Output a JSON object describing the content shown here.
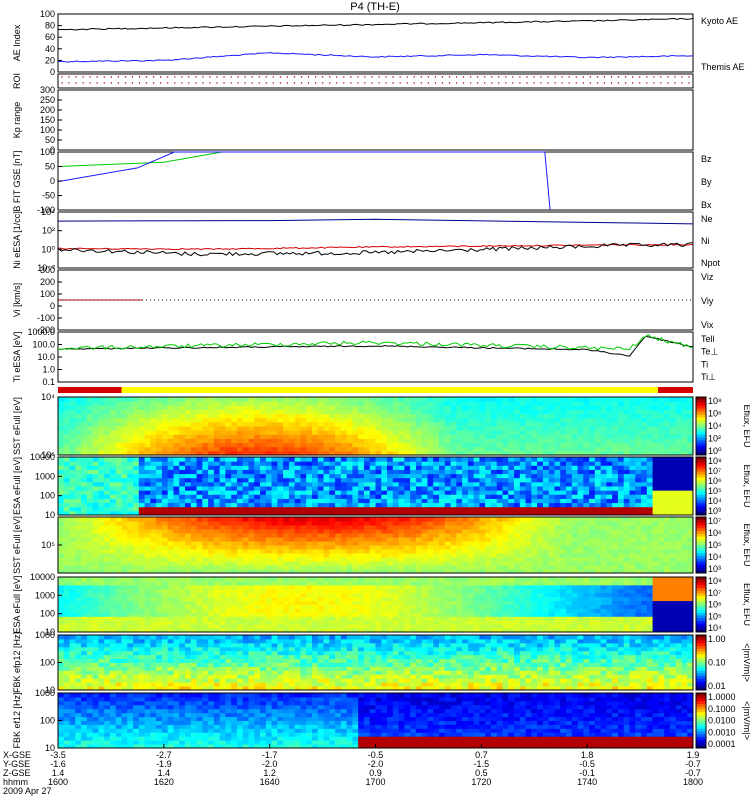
{
  "title": "P4 (TH-E)",
  "date_label": "2009 Apr 27",
  "colors": {
    "black": "#000000",
    "blue": "#1a1aff",
    "red": "#d40000",
    "green": "#00cc00",
    "navy": "#00008b"
  },
  "time_axis": {
    "ticks": [
      "1600",
      "1620",
      "1640",
      "1700",
      "1720",
      "1740",
      "1800"
    ],
    "rows": [
      {
        "label": "X-GSE",
        "values": [
          "-3.5",
          "-2.7",
          "-1.7",
          "-0.5",
          "0.7",
          "1.8",
          "1.9"
        ]
      },
      {
        "label": "Y-GSE",
        "values": [
          "-1.6",
          "-1.9",
          "-2.0",
          "-2.0",
          "-1.5",
          "-0.5",
          "-0.7"
        ]
      },
      {
        "label": "Z-GSE",
        "values": [
          "1.4",
          "1.4",
          "1.2",
          "0.9",
          "0.5",
          "-0.1",
          "-0.7"
        ]
      },
      {
        "label": "hhmm",
        "values": [
          "1600",
          "1620",
          "1640",
          "1700",
          "1720",
          "1740",
          "1800"
        ]
      }
    ]
  },
  "chart_data": [
    {
      "type": "line",
      "ylabel": "AE Index",
      "ylim": [
        0,
        100
      ],
      "yticks": [
        "0",
        "20",
        "40",
        "60",
        "80",
        "100"
      ],
      "x": [
        "1600",
        "1620",
        "1640",
        "1700",
        "1720",
        "1740",
        "1800"
      ],
      "series": [
        {
          "name": "Kyoto AE",
          "color": "#1a1aff",
          "values": [
            18,
            20,
            33,
            26,
            30,
            25,
            28
          ]
        },
        {
          "name": "Themis AE",
          "color": "#000000",
          "values": [
            73,
            76,
            79,
            82,
            85,
            88,
            92
          ]
        }
      ]
    },
    {
      "type": "scatter",
      "ylabel": "ROI",
      "ylim": [
        0,
        1
      ],
      "yticks": []
    },
    {
      "type": "line",
      "ylabel": "Kp range",
      "ylim": [
        0,
        300
      ],
      "yticks": [
        "0",
        "50",
        "100",
        "150",
        "200",
        "250",
        "300"
      ],
      "series": []
    },
    {
      "type": "line",
      "ylabel": "B FIT GSE [nT]",
      "ylim": [
        -100,
        100
      ],
      "yticks": [
        "-100",
        "-50",
        "0",
        "50",
        "100"
      ],
      "series": [
        {
          "name": "Bz",
          "color": "#d40000",
          "values": []
        },
        {
          "name": "By",
          "color": "#00cc00",
          "values": [
            {
              "x": "1600",
              "y": 50
            },
            {
              "x": "1620",
              "y": 65
            },
            {
              "x": "1631",
              "y": 100
            }
          ]
        },
        {
          "name": "Bx",
          "color": "#1a1aff",
          "values": [
            {
              "x": "1600",
              "y": -2
            },
            {
              "x": "1615",
              "y": 45
            },
            {
              "x": "1622",
              "y": 100
            },
            {
              "x": "1732",
              "y": 100
            },
            {
              "x": "1733",
              "y": -100
            }
          ]
        }
      ]
    },
    {
      "type": "line",
      "ylabel": "Ni eESA [1/cc]",
      "log": true,
      "yticks": [
        "10⁻²",
        "10⁰",
        "10²",
        "10⁴"
      ],
      "series": [
        {
          "name": "Ne",
          "color": "#d40000",
          "values": [
            {
              "x": "1600",
              "y": 0.6
            },
            {
              "x": "1630",
              "y": 0.5
            },
            {
              "x": "1700",
              "y": 1.0
            },
            {
              "x": "1745",
              "y": 2.0
            },
            {
              "x": "1800",
              "y": 2.2
            }
          ]
        },
        {
          "name": "Ni",
          "color": "#000000",
          "values": [
            {
              "x": "1600",
              "y": 0.5
            },
            {
              "x": "1625",
              "y": 0.1
            },
            {
              "x": "1700",
              "y": 0.15
            },
            {
              "x": "1745",
              "y": 1.6
            },
            {
              "x": "1800",
              "y": 2.2
            }
          ]
        },
        {
          "name": "Npot",
          "color": "#00008b",
          "values": [
            {
              "x": "1600",
              "y": 5000
            },
            {
              "x": "1640",
              "y": 6000
            },
            {
              "x": "1700",
              "y": 9000
            },
            {
              "x": "1745",
              "y": 3000
            },
            {
              "x": "1800",
              "y": 2000
            }
          ]
        }
      ]
    },
    {
      "type": "line",
      "ylabel": "Vi [km/s]",
      "ylim": [
        -300,
        300
      ],
      "yticks": [
        "-200",
        "-100",
        "0",
        "100",
        "200",
        "300"
      ],
      "series": [
        {
          "name": "Viz",
          "color": "#d40000",
          "values": [
            {
              "x": "1600",
              "y": 0
            },
            {
              "x": "1616",
              "y": 0
            }
          ]
        },
        {
          "name": "Viy",
          "color": "#00cc00",
          "values": []
        },
        {
          "name": "Vix",
          "color": "#1a1aff",
          "values": []
        }
      ]
    },
    {
      "type": "line",
      "ylabel": "Ti eESA [eV]",
      "log": true,
      "yticks": [
        "0.1",
        "1.0",
        "10.0",
        "100.0",
        "1000.0"
      ],
      "series": [
        {
          "name": "Tell",
          "color": "#000000",
          "values": [
            {
              "x": "1600",
              "y": 80
            },
            {
              "x": "1700",
              "y": 150
            },
            {
              "x": "1740",
              "y": 70
            },
            {
              "x": "1748",
              "y": 20
            },
            {
              "x": "1751",
              "y": 1100
            },
            {
              "x": "1800",
              "y": 120
            }
          ]
        },
        {
          "name": "Te⊥",
          "color": "#d40000",
          "values": []
        },
        {
          "name": "Ti",
          "color": "#00cc00",
          "values": [
            {
              "x": "1600",
              "y": 90
            },
            {
              "x": "1700",
              "y": 300
            },
            {
              "x": "1740",
              "y": 100
            },
            {
              "x": "1748",
              "y": 80
            },
            {
              "x": "1751",
              "y": 1100
            },
            {
              "x": "1800",
              "y": 120
            }
          ]
        },
        {
          "name": "Ti⊥",
          "color": "#1a1aff",
          "values": []
        }
      ]
    },
    {
      "type": "heatmap",
      "ylabel": "SST eFull [eV]",
      "yticks": [
        "10⁵",
        "10⁴"
      ],
      "cbar_ticks": [
        "10⁸",
        "10⁶",
        "10⁴",
        "10²",
        "10⁰"
      ],
      "cbar_label": "Eflux, EFU"
    },
    {
      "type": "heatmap",
      "ylabel": "ESA eFull [eV]",
      "yticks": [
        "10",
        "100",
        "1000",
        "10000"
      ],
      "cbar_ticks": [
        "10⁸",
        "10⁷",
        "10⁶",
        "10⁵",
        "10⁴",
        "10³"
      ],
      "cbar_label": "Eflux, EFU"
    },
    {
      "type": "heatmap",
      "ylabel": "SST eFull [eV]",
      "yticks": [
        "10⁵"
      ],
      "cbar_ticks": [
        "10⁷",
        "10⁶",
        "10⁵",
        "10⁴",
        "10³"
      ],
      "cbar_label": "Eflux, EFU"
    },
    {
      "type": "heatmap",
      "ylabel": "ESA eFull [eV]",
      "yticks": [
        "10",
        "100",
        "1000",
        "10000"
      ],
      "cbar_ticks": [
        "10⁸",
        "10⁷",
        "10⁶",
        "10⁵",
        "10⁴"
      ],
      "cbar_label": "Eflux, EFU"
    },
    {
      "type": "heatmap",
      "ylabel": "FBK efp12 [Hz]",
      "yticks": [
        "10",
        "100",
        "1000"
      ],
      "cbar_ticks": [
        "1.00",
        "0.10",
        "0.01"
      ],
      "cbar_label": "<|mV/m|>"
    },
    {
      "type": "heatmap",
      "ylabel": "FBK ef12 [Hz]",
      "yticks": [
        "10",
        "100",
        "1000"
      ],
      "cbar_ticks": [
        "1.0000",
        "0.1000",
        "0.0100",
        "0.0010",
        "0.0001"
      ],
      "cbar_label": "<|mV/m|>"
    }
  ]
}
